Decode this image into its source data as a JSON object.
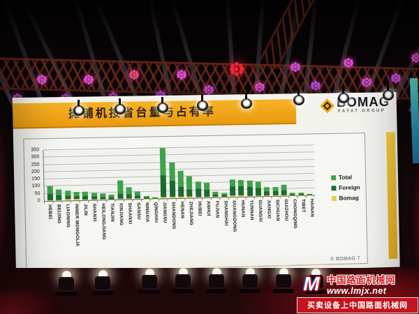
{
  "slide": {
    "title": "摊铺机按省台量与占有率",
    "brand_name": "BOMAG",
    "brand_subtitle": "FAYAT GROUP",
    "page_footer": "© BOMAG 7",
    "banner_color": "#f0a81f",
    "accent_strip_color": "#edc63e"
  },
  "chart_data": {
    "type": "bar",
    "bar_style": "overlay",
    "title": "摊铺机按省台量与占有率",
    "grid": true,
    "legend_position": "right",
    "ylim": [
      0,
      350
    ],
    "yticks": [
      0,
      50,
      100,
      150,
      200,
      250,
      300,
      350
    ],
    "categories": [
      "HEBEI",
      "BEIJING",
      "LIAONING",
      "INNER MONGOLIA",
      "JILIN",
      "SHANXI",
      "HEILONGJIANG",
      "TIANJIN",
      "XINJIANG",
      "SHAANXI",
      "GANSU",
      "NINGXIA",
      "QINGHAI",
      "JIANGSU",
      "SHANDONG",
      "HENAN",
      "ZHEJIANG",
      "HUBEI",
      "ANHUI",
      "FUJIAN",
      "SHANGHAI",
      "GUANGDONG",
      "HUNAN",
      "YUNNAN",
      "GUANGXI",
      "JIANGXI",
      "SICHUAN",
      "GUIZHOU",
      "CHONGQING",
      "TIBET",
      "HAINAN"
    ],
    "series": [
      {
        "name": "Total",
        "color": "#3da24b",
        "values": [
          100,
          80,
          70,
          60,
          60,
          50,
          45,
          35,
          130,
          85,
          55,
          20,
          12,
          350,
          250,
          190,
          150,
          110,
          100,
          40,
          30,
          120,
          115,
          110,
          100,
          65,
          65,
          80,
          20,
          20,
          12
        ]
      },
      {
        "name": "Foreign",
        "color": "#1a6b2f",
        "values": [
          50,
          40,
          35,
          30,
          30,
          25,
          20,
          15,
          40,
          35,
          25,
          10,
          5,
          160,
          120,
          80,
          60,
          65,
          55,
          20,
          15,
          75,
          75,
          70,
          60,
          35,
          35,
          40,
          10,
          8,
          5
        ]
      },
      {
        "name": "Bomag",
        "color": "#dcd24f",
        "values": [
          5,
          5,
          10,
          12,
          3,
          3,
          3,
          2,
          5,
          5,
          3,
          2,
          1,
          12,
          10,
          8,
          8,
          5,
          5,
          3,
          2,
          8,
          8,
          5,
          5,
          5,
          5,
          5,
          2,
          1,
          1
        ]
      }
    ]
  },
  "watermark": {
    "logo_glyph": "M",
    "site_name": "中国路面机械网",
    "url": "www.lmjx.net",
    "tagline": "买卖设备上中国路面机械网"
  }
}
